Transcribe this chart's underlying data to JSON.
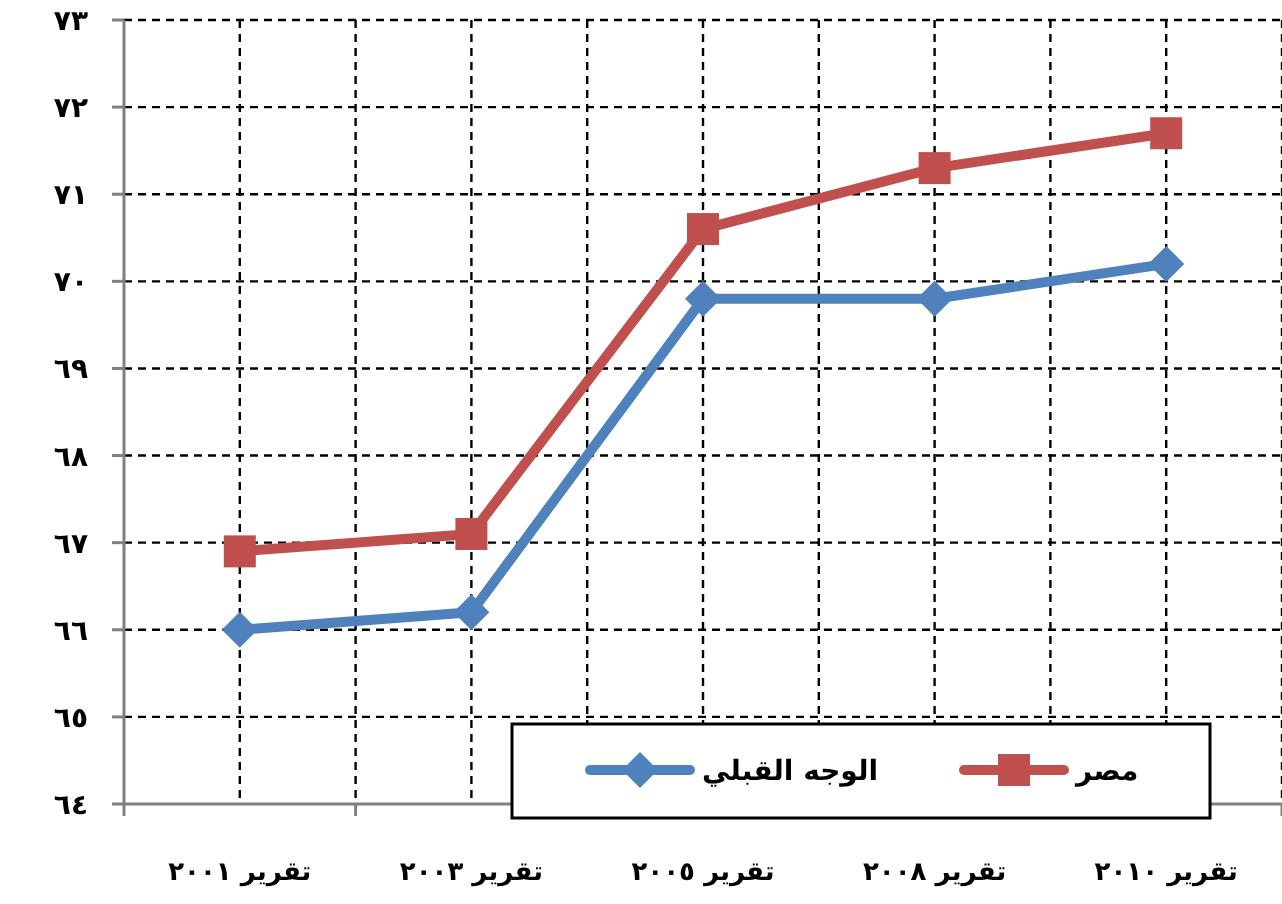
{
  "chart_data": {
    "type": "line",
    "categories": [
      "تقرير ٢٠٠١",
      "تقرير ٢٠٠٣",
      "تقرير ٢٠٠٥",
      "تقرير ٢٠٠٨",
      "تقرير ٢٠١٠"
    ],
    "series": [
      {
        "name": "مصر",
        "color": "#c0504d",
        "marker": "square",
        "values": [
          66.9,
          67.1,
          70.6,
          71.3,
          71.7
        ]
      },
      {
        "name": "الوجه القبلي",
        "color": "#4f81bd",
        "marker": "diamond",
        "values": [
          66.0,
          66.2,
          69.8,
          69.8,
          70.2
        ]
      }
    ],
    "ylim": [
      64,
      73
    ],
    "yticks": [
      {
        "value": 64,
        "label": "٦٤"
      },
      {
        "value": 65,
        "label": "٦٥"
      },
      {
        "value": 66,
        "label": "٦٦"
      },
      {
        "value": 67,
        "label": "٦٧"
      },
      {
        "value": 68,
        "label": "٦٨"
      },
      {
        "value": 69,
        "label": "٦٩"
      },
      {
        "value": 70,
        "label": "٧٠"
      },
      {
        "value": 71,
        "label": "٧١"
      },
      {
        "value": 72,
        "label": "٧٢"
      },
      {
        "value": 73,
        "label": "٧٣"
      }
    ],
    "grid": true,
    "legend": "bottom right",
    "line_style": "solid"
  }
}
